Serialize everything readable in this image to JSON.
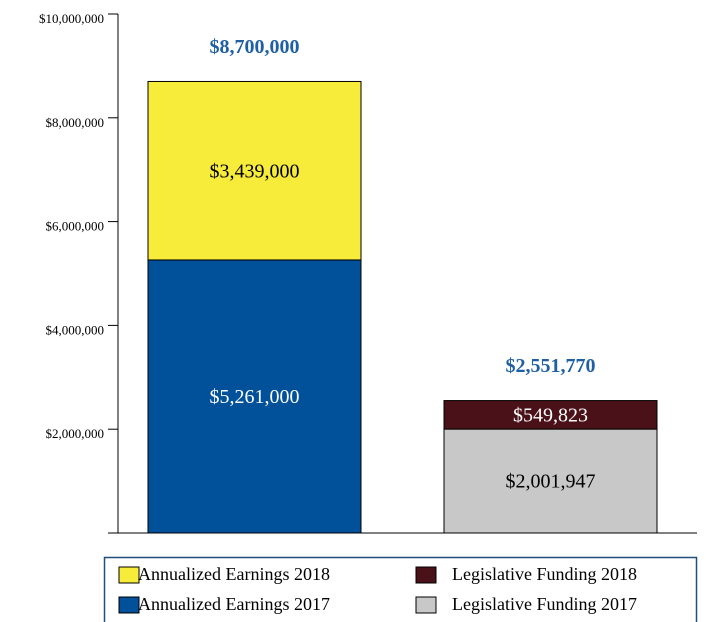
{
  "chart_data": {
    "type": "stacked_bar",
    "categories": [
      null,
      null
    ],
    "series": [
      {
        "name": "Annualized Earnings 2017",
        "color": "#00519a",
        "values": [
          5261000,
          null
        ],
        "value_labels": [
          "$5,261,000",
          null
        ]
      },
      {
        "name": "Annualized Earnings 2018",
        "color": "#f7ec3a",
        "values": [
          3439000,
          null
        ],
        "value_labels": [
          "$3,439,000",
          null
        ]
      },
      {
        "name": "Legislative Funding 2017",
        "color": "#c8c8c8",
        "values": [
          null,
          2001947
        ],
        "value_labels": [
          null,
          "$2,001,947"
        ]
      },
      {
        "name": "Legislative Funding 2018",
        "color": "#4a1118",
        "values": [
          null,
          549823
        ],
        "value_labels": [
          null,
          "$549,823"
        ]
      }
    ],
    "totals": [
      8700000,
      2551770
    ],
    "total_labels": [
      "$8,700,000",
      "$2,551,770"
    ],
    "ylim": [
      0,
      10000000
    ],
    "yticks": [
      {
        "value": 2000000,
        "label": "$2,000,000"
      },
      {
        "value": 4000000,
        "label": "$4,000,000"
      },
      {
        "value": 6000000,
        "label": "$6,000,000"
      },
      {
        "value": 8000000,
        "label": "$8,000,000"
      },
      {
        "value": 10000000,
        "label": "$10,000,000"
      }
    ],
    "legend": "bottom"
  }
}
